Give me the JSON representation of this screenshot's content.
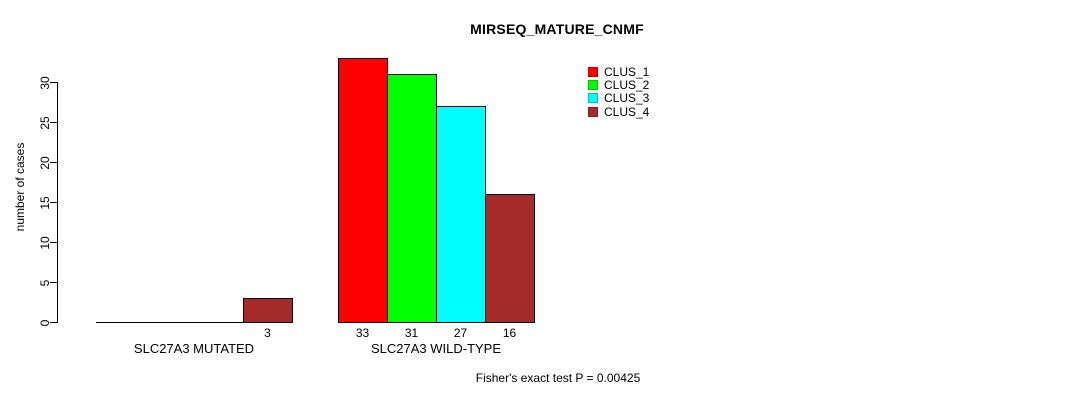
{
  "chart_data": {
    "type": "bar",
    "title": "MIRSEQ_MATURE_CNMF",
    "ylabel": "number of cases",
    "xlabel": "",
    "categories": [
      "SLC27A3 MUTATED",
      "SLC27A3 WILD-TYPE"
    ],
    "series": [
      {
        "name": "CLUS_1",
        "color": "#FF0000",
        "values": [
          0,
          33
        ]
      },
      {
        "name": "CLUS_2",
        "color": "#00FF00",
        "values": [
          0,
          31
        ]
      },
      {
        "name": "CLUS_3",
        "color": "#00FFFF",
        "values": [
          0,
          27
        ]
      },
      {
        "name": "CLUS_4",
        "color": "#A52A2A",
        "values": [
          3,
          16
        ]
      }
    ],
    "bar_value_labels_visible_when": "value > 0",
    "yticks": [
      0,
      5,
      10,
      15,
      20,
      25,
      30
    ],
    "ylim": [
      0,
      33
    ],
    "grid": false,
    "legend_position": "top-right",
    "legend_entries": [
      "CLUS_1",
      "CLUS_2",
      "CLUS_3",
      "CLUS_4"
    ],
    "annotation": "Fisher's exact test P = 0.00425"
  },
  "colors": {
    "background": "#FFFFFF",
    "axis": "#000000",
    "bar_border": "#000000",
    "text": "#000000"
  }
}
